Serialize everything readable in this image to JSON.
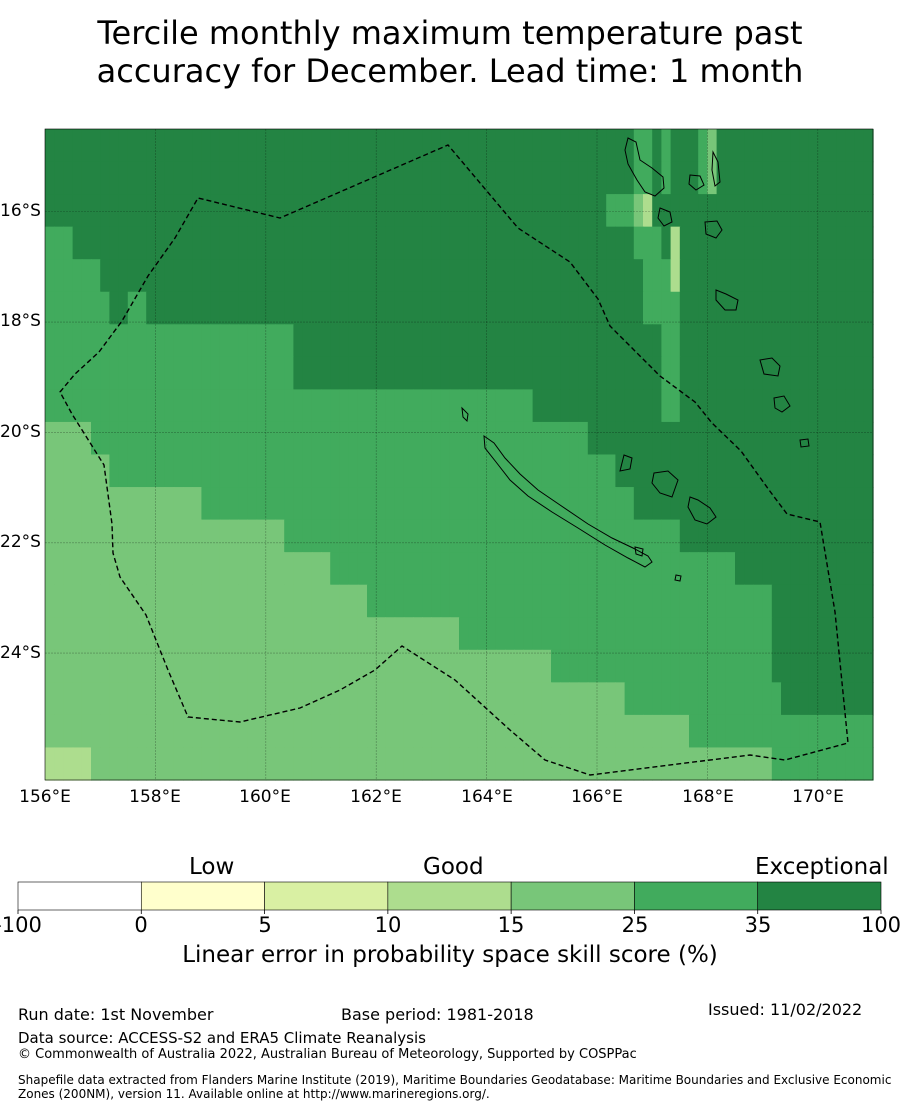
{
  "title": {
    "line1": "Tercile monthly maximum temperature past",
    "line2": "accuracy for December. Lead time: 1 month"
  },
  "map": {
    "lon_range": [
      156,
      171
    ],
    "lat_range": [
      -26.3,
      -14.5
    ],
    "lat_ticks": [
      "16°S",
      "18°S",
      "20°S",
      "22°S",
      "24°S"
    ],
    "lon_ticks": [
      "156°E",
      "158°E",
      "160°E",
      "162°E",
      "164°E",
      "166°E",
      "168°E",
      "170°E"
    ],
    "grid_resolution_deg": 0.833,
    "skill_class_grid": [
      "666666666666666666666666666666666666666666666666666666666666666655656665466666666666666666",
      "666666666666666666666666666666666666666666666666666666666666666655656665466666666666666666",
      "666666666666666666666666666666666666666666666666666666666666655543666666666666666666666666",
      "555666666666666666666666666666666666666666666666666666666666666655563666666666666666666666",
      "555555666666666666666666666666666666666666666666666666666666666665553666666666666666666666",
      "555555566556666666666666666666666666666666666666666666666666666665555666666666666666666666",
      "555555555555555555555555555666666666666666666666666666666666666666655666666666666666666666",
      "555555555555555555555555555666666666666666666666666666666666666666655666666666666666666666",
      "555555555555555555555555555555555555555555555555555556666666666666655666666666666666666666",
      "444445555555555555555555555555555555555555555555555555555556666666666666666666666666666666",
      "444444455555555555555555555555555555555555555555555555555555556666666666666666666666666666",
      "444444444444444445555555555555555555555555555555555555555555555566666666666666666666666666",
      "444444444444444444444444445555555555555555555555555555555555555555555666666666666666666666",
      "444444444444444444444444444444455555555555555555555555555555555555555555555666666666666666",
      "444444444444444444444444444444444445555555555555555555555555555555555555555555566666666666",
      "444444444444444444444444444444444444444444444555555555555555555555555555555555566666666666",
      "444444444444444444444444444444444444444444444444444444455555555555555555555555566666666666",
      "444444444444444444444444444444444444444444444444444444444444444555555555555555556666666666",
      "444444444444444444444444444444444444444444444444444444444444444444444455555555555555555555",
      "333334444444444444444444444444444444444444444444444444444444444444444444444444455555555555"
    ],
    "note_grid": "rows north-to-south; 0=-100..0 1=0..5 2=5..10 3=10..15 4=15..25 5=25..35 6=35..100"
  },
  "colorbar": {
    "headers": {
      "low": "Low",
      "good": "Good",
      "exceptional": "Exceptional"
    },
    "ticks": [
      "-100",
      "0",
      "5",
      "10",
      "15",
      "25",
      "35",
      "100"
    ],
    "colors": [
      "#ffffff",
      "#ffffcc",
      "#d9f0a3",
      "#addd8e",
      "#78c679",
      "#41ab5d",
      "#238443"
    ],
    "xlabel": "Linear error in probability space skill score (%)"
  },
  "footer": {
    "run_date": "Run date: 1st November",
    "base_period": "Base period: 1981-2018",
    "issued": "Issued: 11/02/2022",
    "data_source": "Data source: ACCESS-S2 and ERA5 Climate Reanalysis",
    "copyright": "© Commonwealth of Australia 2022, Australian Bureau of Meteorology, Supported by COSPPac",
    "shapefile": "Shapefile data extracted from Flanders Marine Institute (2019), Maritime Boundaries Geodatabase: Maritime Boundaries and Exclusive Economic Zones (200NM), version 11. Available online at http://www.marineregions.org/."
  }
}
